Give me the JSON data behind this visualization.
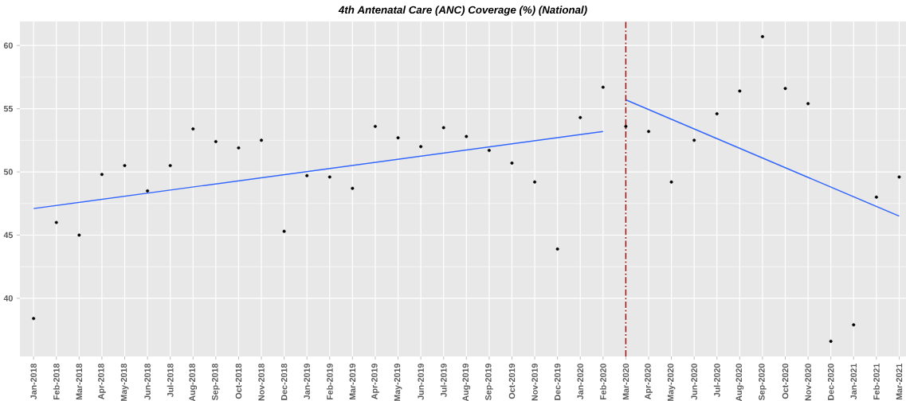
{
  "chart_data": {
    "type": "scatter",
    "title": "4th Antenatal Care (ANC) Coverage (%) (National)",
    "categories": [
      "Jan-2018",
      "Feb-2018",
      "Mar-2018",
      "Apr-2018",
      "May-2018",
      "Jun-2018",
      "Jul-2018",
      "Aug-2018",
      "Sep-2018",
      "Oct-2018",
      "Nov-2018",
      "Dec-2018",
      "Jan-2019",
      "Feb-2019",
      "Mar-2019",
      "Apr-2019",
      "May-2019",
      "Jun-2019",
      "Jul-2019",
      "Aug-2019",
      "Sep-2019",
      "Oct-2019",
      "Nov-2019",
      "Dec-2019",
      "Jan-2020",
      "Feb-2020",
      "Mar-2020",
      "Apr-2020",
      "May-2020",
      "Jun-2020",
      "Jul-2020",
      "Aug-2020",
      "Sep-2020",
      "Oct-2020",
      "Nov-2020",
      "Dec-2020",
      "Jan-2021",
      "Feb-2021",
      "Mar-2021"
    ],
    "series": [
      {
        "color": "#000000",
        "marker": "circle",
        "values": [
          38.4,
          46.0,
          45.0,
          49.8,
          50.5,
          48.5,
          50.5,
          53.4,
          52.4,
          51.9,
          52.5,
          45.3,
          49.7,
          49.6,
          48.7,
          53.6,
          52.7,
          52.0,
          53.5,
          52.8,
          51.7,
          50.7,
          49.2,
          43.9,
          54.3,
          56.7,
          53.6,
          53.2,
          49.2,
          52.5,
          54.6,
          56.4,
          60.7,
          56.6,
          55.4,
          36.6,
          37.9,
          48.0,
          49.6
        ]
      },
      {
        "type": "line",
        "color": "#3366ff",
        "marker": "none",
        "x": [
          "Jan-2018",
          "Feb-2020"
        ],
        "values": [
          47.1,
          53.2
        ]
      },
      {
        "type": "line",
        "color": "#3366ff",
        "marker": "none",
        "x": [
          "Mar-2020",
          "Mar-2021"
        ],
        "values": [
          55.7,
          46.5
        ]
      }
    ],
    "ylim": [
      35.4,
      61.9
    ],
    "yticks": [
      40,
      45,
      50,
      55,
      60
    ],
    "grid": true,
    "ref_lines": [
      {
        "axis": "x",
        "value": "Mar-2020",
        "color": "#cc0000",
        "line_style": "dashed"
      }
    ]
  }
}
